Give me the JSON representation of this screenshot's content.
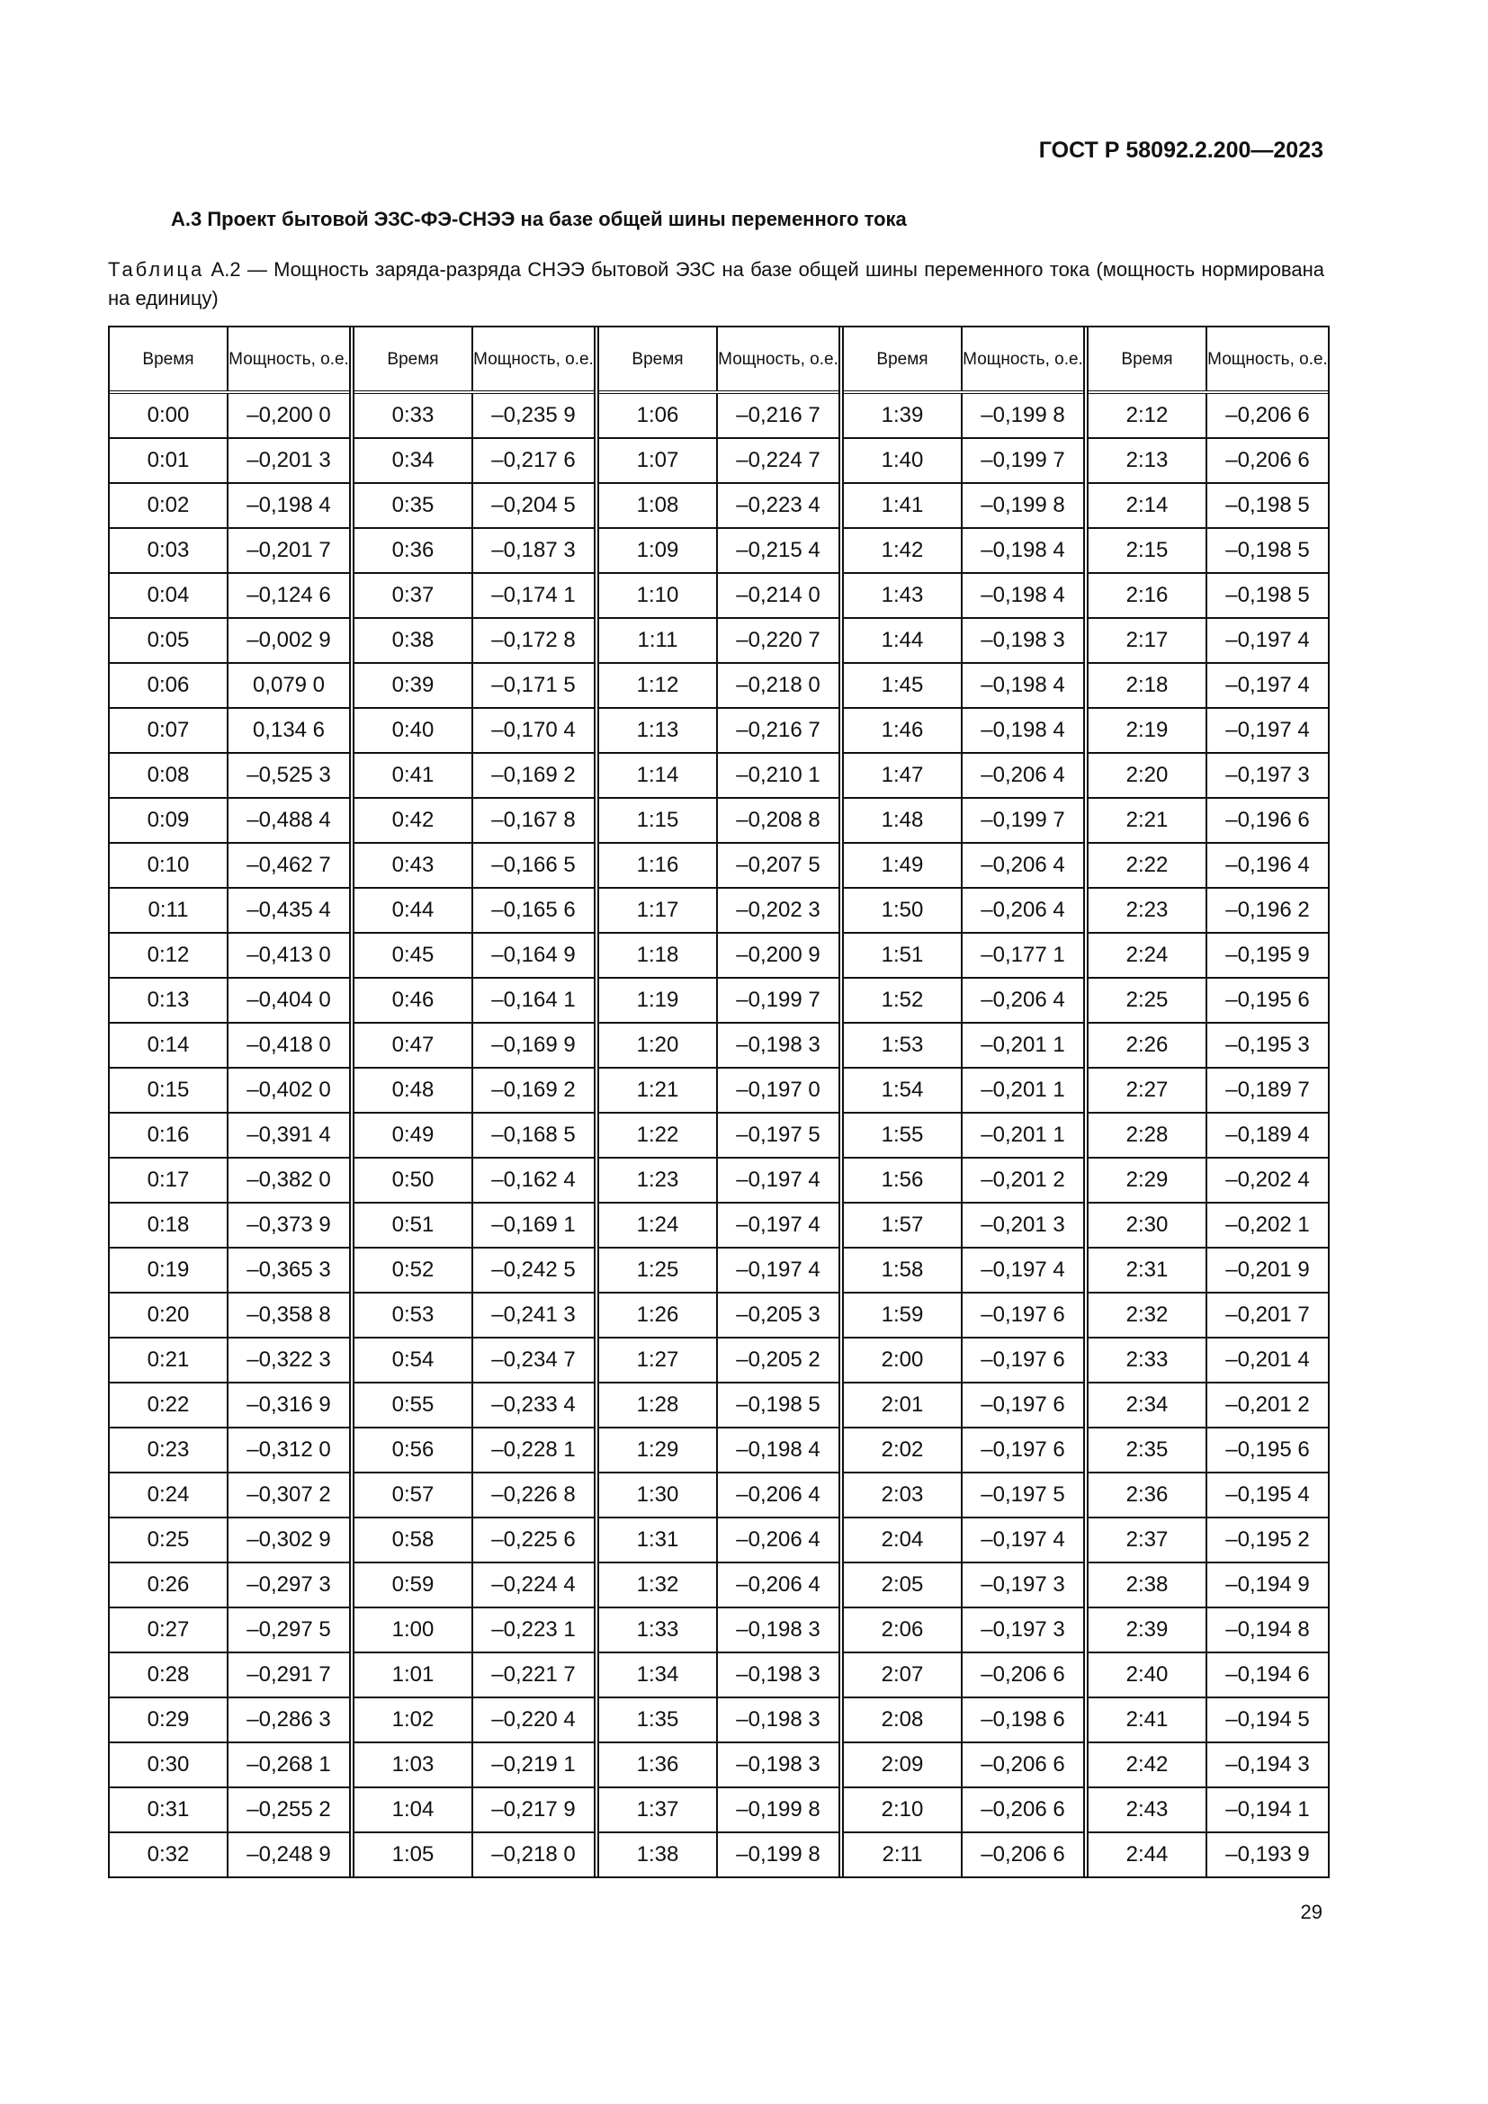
{
  "header": {
    "standard": "ГОСТ Р 58092.2.200—2023"
  },
  "section": {
    "title": "А.3 Проект бытовой ЭЗС-ФЭ-СНЭЭ на базе общей шины переменного тока"
  },
  "caption": {
    "label": "Таблица",
    "text": " А.2 — Мощность заряда-разряда СНЭЭ бытовой ЭЗС на базе общей шины переменного тока (мощность нормирована на единицу)"
  },
  "table": {
    "headers": {
      "time": "Время",
      "power": "Мощность, о.е."
    },
    "columns": [
      {
        "rows": [
          [
            "0:00",
            "–0,200 0"
          ],
          [
            "0:01",
            "–0,201 3"
          ],
          [
            "0:02",
            "–0,198 4"
          ],
          [
            "0:03",
            "–0,201 7"
          ],
          [
            "0:04",
            "–0,124 6"
          ],
          [
            "0:05",
            "–0,002 9"
          ],
          [
            "0:06",
            "0,079 0"
          ],
          [
            "0:07",
            "0,134 6"
          ],
          [
            "0:08",
            "–0,525 3"
          ],
          [
            "0:09",
            "–0,488 4"
          ],
          [
            "0:10",
            "–0,462 7"
          ],
          [
            "0:11",
            "–0,435 4"
          ],
          [
            "0:12",
            "–0,413 0"
          ],
          [
            "0:13",
            "–0,404 0"
          ],
          [
            "0:14",
            "–0,418 0"
          ],
          [
            "0:15",
            "–0,402 0"
          ],
          [
            "0:16",
            "–0,391 4"
          ],
          [
            "0:17",
            "–0,382 0"
          ],
          [
            "0:18",
            "–0,373 9"
          ],
          [
            "0:19",
            "–0,365 3"
          ],
          [
            "0:20",
            "–0,358 8"
          ],
          [
            "0:21",
            "–0,322 3"
          ],
          [
            "0:22",
            "–0,316 9"
          ],
          [
            "0:23",
            "–0,312 0"
          ],
          [
            "0:24",
            "–0,307 2"
          ],
          [
            "0:25",
            "–0,302 9"
          ],
          [
            "0:26",
            "–0,297 3"
          ],
          [
            "0:27",
            "–0,297 5"
          ],
          [
            "0:28",
            "–0,291 7"
          ],
          [
            "0:29",
            "–0,286 3"
          ],
          [
            "0:30",
            "–0,268 1"
          ],
          [
            "0:31",
            "–0,255 2"
          ],
          [
            "0:32",
            "–0,248 9"
          ]
        ]
      },
      {
        "rows": [
          [
            "0:33",
            "–0,235 9"
          ],
          [
            "0:34",
            "–0,217 6"
          ],
          [
            "0:35",
            "–0,204 5"
          ],
          [
            "0:36",
            "–0,187 3"
          ],
          [
            "0:37",
            "–0,174 1"
          ],
          [
            "0:38",
            "–0,172 8"
          ],
          [
            "0:39",
            "–0,171 5"
          ],
          [
            "0:40",
            "–0,170 4"
          ],
          [
            "0:41",
            "–0,169 2"
          ],
          [
            "0:42",
            "–0,167 8"
          ],
          [
            "0:43",
            "–0,166 5"
          ],
          [
            "0:44",
            "–0,165 6"
          ],
          [
            "0:45",
            "–0,164 9"
          ],
          [
            "0:46",
            "–0,164 1"
          ],
          [
            "0:47",
            "–0,169 9"
          ],
          [
            "0:48",
            "–0,169 2"
          ],
          [
            "0:49",
            "–0,168 5"
          ],
          [
            "0:50",
            "–0,162 4"
          ],
          [
            "0:51",
            "–0,169 1"
          ],
          [
            "0:52",
            "–0,242 5"
          ],
          [
            "0:53",
            "–0,241 3"
          ],
          [
            "0:54",
            "–0,234 7"
          ],
          [
            "0:55",
            "–0,233 4"
          ],
          [
            "0:56",
            "–0,228 1"
          ],
          [
            "0:57",
            "–0,226 8"
          ],
          [
            "0:58",
            "–0,225 6"
          ],
          [
            "0:59",
            "–0,224 4"
          ],
          [
            "1:00",
            "–0,223 1"
          ],
          [
            "1:01",
            "–0,221 7"
          ],
          [
            "1:02",
            "–0,220 4"
          ],
          [
            "1:03",
            "–0,219 1"
          ],
          [
            "1:04",
            "–0,217 9"
          ],
          [
            "1:05",
            "–0,218 0"
          ]
        ]
      },
      {
        "rows": [
          [
            "1:06",
            "–0,216 7"
          ],
          [
            "1:07",
            "–0,224 7"
          ],
          [
            "1:08",
            "–0,223 4"
          ],
          [
            "1:09",
            "–0,215 4"
          ],
          [
            "1:10",
            "–0,214 0"
          ],
          [
            "1:11",
            "–0,220 7"
          ],
          [
            "1:12",
            "–0,218 0"
          ],
          [
            "1:13",
            "–0,216 7"
          ],
          [
            "1:14",
            "–0,210 1"
          ],
          [
            "1:15",
            "–0,208 8"
          ],
          [
            "1:16",
            "–0,207 5"
          ],
          [
            "1:17",
            "–0,202 3"
          ],
          [
            "1:18",
            "–0,200 9"
          ],
          [
            "1:19",
            "–0,199 7"
          ],
          [
            "1:20",
            "–0,198 3"
          ],
          [
            "1:21",
            "–0,197 0"
          ],
          [
            "1:22",
            "–0,197 5"
          ],
          [
            "1:23",
            "–0,197 4"
          ],
          [
            "1:24",
            "–0,197 4"
          ],
          [
            "1:25",
            "–0,197 4"
          ],
          [
            "1:26",
            "–0,205 3"
          ],
          [
            "1:27",
            "–0,205 2"
          ],
          [
            "1:28",
            "–0,198 5"
          ],
          [
            "1:29",
            "–0,198 4"
          ],
          [
            "1:30",
            "–0,206 4"
          ],
          [
            "1:31",
            "–0,206 4"
          ],
          [
            "1:32",
            "–0,206 4"
          ],
          [
            "1:33",
            "–0,198 3"
          ],
          [
            "1:34",
            "–0,198 3"
          ],
          [
            "1:35",
            "–0,198 3"
          ],
          [
            "1:36",
            "–0,198 3"
          ],
          [
            "1:37",
            "–0,199 8"
          ],
          [
            "1:38",
            "–0,199 8"
          ]
        ]
      },
      {
        "rows": [
          [
            "1:39",
            "–0,199 8"
          ],
          [
            "1:40",
            "–0,199 7"
          ],
          [
            "1:41",
            "–0,199 8"
          ],
          [
            "1:42",
            "–0,198 4"
          ],
          [
            "1:43",
            "–0,198 4"
          ],
          [
            "1:44",
            "–0,198 3"
          ],
          [
            "1:45",
            "–0,198 4"
          ],
          [
            "1:46",
            "–0,198 4"
          ],
          [
            "1:47",
            "–0,206 4"
          ],
          [
            "1:48",
            "–0,199 7"
          ],
          [
            "1:49",
            "–0,206 4"
          ],
          [
            "1:50",
            "–0,206 4"
          ],
          [
            "1:51",
            "–0,177 1"
          ],
          [
            "1:52",
            "–0,206 4"
          ],
          [
            "1:53",
            "–0,201 1"
          ],
          [
            "1:54",
            "–0,201 1"
          ],
          [
            "1:55",
            "–0,201 1"
          ],
          [
            "1:56",
            "–0,201 2"
          ],
          [
            "1:57",
            "–0,201 3"
          ],
          [
            "1:58",
            "–0,197 4"
          ],
          [
            "1:59",
            "–0,197 6"
          ],
          [
            "2:00",
            "–0,197 6"
          ],
          [
            "2:01",
            "–0,197 6"
          ],
          [
            "2:02",
            "–0,197 6"
          ],
          [
            "2:03",
            "–0,197 5"
          ],
          [
            "2:04",
            "–0,197 4"
          ],
          [
            "2:05",
            "–0,197 3"
          ],
          [
            "2:06",
            "–0,197 3"
          ],
          [
            "2:07",
            "–0,206 6"
          ],
          [
            "2:08",
            "–0,198 6"
          ],
          [
            "2:09",
            "–0,206 6"
          ],
          [
            "2:10",
            "–0,206 6"
          ],
          [
            "2:11",
            "–0,206 6"
          ]
        ]
      },
      {
        "rows": [
          [
            "2:12",
            "–0,206 6"
          ],
          [
            "2:13",
            "–0,206 6"
          ],
          [
            "2:14",
            "–0,198 5"
          ],
          [
            "2:15",
            "–0,198 5"
          ],
          [
            "2:16",
            "–0,198 5"
          ],
          [
            "2:17",
            "–0,197 4"
          ],
          [
            "2:18",
            "–0,197 4"
          ],
          [
            "2:19",
            "–0,197 4"
          ],
          [
            "2:20",
            "–0,197 3"
          ],
          [
            "2:21",
            "–0,196 6"
          ],
          [
            "2:22",
            "–0,196 4"
          ],
          [
            "2:23",
            "–0,196 2"
          ],
          [
            "2:24",
            "–0,195 9"
          ],
          [
            "2:25",
            "–0,195 6"
          ],
          [
            "2:26",
            "–0,195 3"
          ],
          [
            "2:27",
            "–0,189 7"
          ],
          [
            "2:28",
            "–0,189 4"
          ],
          [
            "2:29",
            "–0,202 4"
          ],
          [
            "2:30",
            "–0,202 1"
          ],
          [
            "2:31",
            "–0,201 9"
          ],
          [
            "2:32",
            "–0,201 7"
          ],
          [
            "2:33",
            "–0,201 4"
          ],
          [
            "2:34",
            "–0,201 2"
          ],
          [
            "2:35",
            "–0,195 6"
          ],
          [
            "2:36",
            "–0,195 4"
          ],
          [
            "2:37",
            "–0,195 2"
          ],
          [
            "2:38",
            "–0,194 9"
          ],
          [
            "2:39",
            "–0,194 8"
          ],
          [
            "2:40",
            "–0,194 6"
          ],
          [
            "2:41",
            "–0,194 5"
          ],
          [
            "2:42",
            "–0,194 3"
          ],
          [
            "2:43",
            "–0,194 1"
          ],
          [
            "2:44",
            "–0,193 9"
          ]
        ]
      }
    ]
  },
  "footer": {
    "page_number": "29"
  }
}
